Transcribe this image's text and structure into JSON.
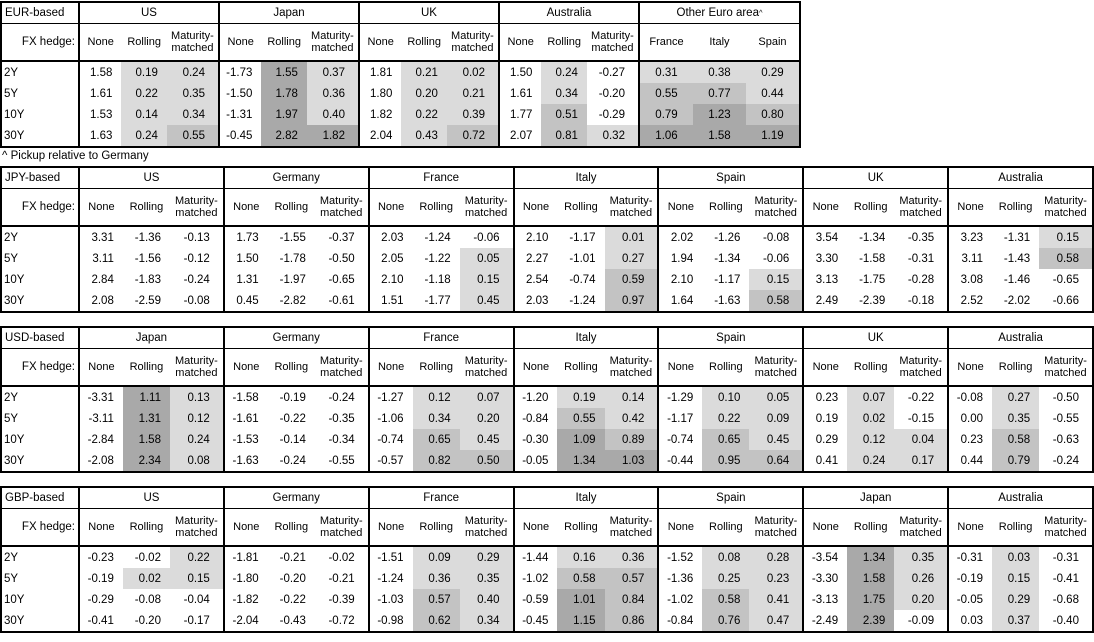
{
  "footnote": "^ Pickup relative to Germany",
  "hedge_row_label": "FX hedge:",
  "hedge_options": [
    "None",
    "Rolling",
    "Maturity-matched"
  ],
  "tenors": [
    "2Y",
    "5Y",
    "10Y",
    "30Y"
  ],
  "shading": {
    "negative": "#ffffff",
    "light": "#dbdbdb",
    "medium": "#c3c3c3",
    "dark": "#a9a9a9",
    "light_max": 0.5,
    "medium_max": 1.0,
    "rule": "applies to Rolling, Maturity-matched and pickup columns only"
  },
  "tables": [
    {
      "id": "eur-based",
      "title": "EUR-based",
      "footnote_after": true,
      "groups": [
        {
          "name": "US",
          "columns": [
            "None",
            "Rolling",
            "Maturity-matched"
          ],
          "values": [
            [
              "1.58",
              "0.19",
              "0.24"
            ],
            [
              "1.61",
              "0.22",
              "0.35"
            ],
            [
              "1.53",
              "0.14",
              "0.34"
            ],
            [
              "1.63",
              "0.24",
              "0.55"
            ]
          ]
        },
        {
          "name": "Japan",
          "columns": [
            "None",
            "Rolling",
            "Maturity-matched"
          ],
          "values": [
            [
              "-1.73",
              "1.55",
              "0.37"
            ],
            [
              "-1.50",
              "1.78",
              "0.36"
            ],
            [
              "-1.31",
              "1.97",
              "0.40"
            ],
            [
              "-0.45",
              "2.82",
              "1.82"
            ]
          ]
        },
        {
          "name": "UK",
          "columns": [
            "None",
            "Rolling",
            "Maturity-matched"
          ],
          "values": [
            [
              "1.81",
              "0.21",
              "0.02"
            ],
            [
              "1.80",
              "0.20",
              "0.21"
            ],
            [
              "1.82",
              "0.22",
              "0.39"
            ],
            [
              "2.04",
              "0.43",
              "0.72"
            ]
          ]
        },
        {
          "name": "Australia",
          "columns": [
            "None",
            "Rolling",
            "Maturity-matched"
          ],
          "values": [
            [
              "1.50",
              "0.24",
              "-0.27"
            ],
            [
              "1.61",
              "0.34",
              "-0.20"
            ],
            [
              "1.77",
              "0.51",
              "-0.29"
            ],
            [
              "2.07",
              "0.81",
              "0.32"
            ]
          ]
        },
        {
          "name": "Other Euro area",
          "superscript": "^",
          "pickup": true,
          "columns": [
            "France",
            "Italy",
            "Spain"
          ],
          "values": [
            [
              "0.31",
              "0.38",
              "0.29"
            ],
            [
              "0.55",
              "0.77",
              "0.44"
            ],
            [
              "0.79",
              "1.23",
              "0.80"
            ],
            [
              "1.06",
              "1.58",
              "1.19"
            ]
          ]
        }
      ]
    },
    {
      "id": "jpy-based",
      "title": "JPY-based",
      "groups": [
        {
          "name": "US",
          "columns": [
            "None",
            "Rolling",
            "Maturity-matched"
          ],
          "values": [
            [
              "3.31",
              "-1.36",
              "-0.13"
            ],
            [
              "3.11",
              "-1.56",
              "-0.12"
            ],
            [
              "2.84",
              "-1.83",
              "-0.24"
            ],
            [
              "2.08",
              "-2.59",
              "-0.08"
            ]
          ]
        },
        {
          "name": "Germany",
          "columns": [
            "None",
            "Rolling",
            "Maturity-matched"
          ],
          "values": [
            [
              "1.73",
              "-1.55",
              "-0.37"
            ],
            [
              "1.50",
              "-1.78",
              "-0.50"
            ],
            [
              "1.31",
              "-1.97",
              "-0.65"
            ],
            [
              "0.45",
              "-2.82",
              "-0.61"
            ]
          ]
        },
        {
          "name": "France",
          "columns": [
            "None",
            "Rolling",
            "Maturity-matched"
          ],
          "values": [
            [
              "2.03",
              "-1.24",
              "-0.06"
            ],
            [
              "2.05",
              "-1.22",
              "0.05"
            ],
            [
              "2.10",
              "-1.18",
              "0.15"
            ],
            [
              "1.51",
              "-1.77",
              "0.45"
            ]
          ]
        },
        {
          "name": "Italy",
          "columns": [
            "None",
            "Rolling",
            "Maturity-matched"
          ],
          "values": [
            [
              "2.10",
              "-1.17",
              "0.01"
            ],
            [
              "2.27",
              "-1.01",
              "0.27"
            ],
            [
              "2.54",
              "-0.74",
              "0.59"
            ],
            [
              "2.03",
              "-1.24",
              "0.97"
            ]
          ]
        },
        {
          "name": "Spain",
          "columns": [
            "None",
            "Rolling",
            "Maturity-matched"
          ],
          "values": [
            [
              "2.02",
              "-1.26",
              "-0.08"
            ],
            [
              "1.94",
              "-1.34",
              "-0.06"
            ],
            [
              "2.10",
              "-1.17",
              "0.15"
            ],
            [
              "1.64",
              "-1.63",
              "0.58"
            ]
          ]
        },
        {
          "name": "UK",
          "columns": [
            "None",
            "Rolling",
            "Maturity-matched"
          ],
          "values": [
            [
              "3.54",
              "-1.34",
              "-0.35"
            ],
            [
              "3.30",
              "-1.58",
              "-0.31"
            ],
            [
              "3.13",
              "-1.75",
              "-0.28"
            ],
            [
              "2.49",
              "-2.39",
              "-0.18"
            ]
          ]
        },
        {
          "name": "Australia",
          "columns": [
            "None",
            "Rolling",
            "Maturity-matched"
          ],
          "values": [
            [
              "3.23",
              "-1.31",
              "0.15"
            ],
            [
              "3.11",
              "-1.43",
              "0.58"
            ],
            [
              "3.08",
              "-1.46",
              "-0.65"
            ],
            [
              "2.52",
              "-2.02",
              "-0.66"
            ]
          ]
        }
      ]
    },
    {
      "id": "usd-based",
      "title": "USD-based",
      "groups": [
        {
          "name": "Japan",
          "columns": [
            "None",
            "Rolling",
            "Maturity-matched"
          ],
          "values": [
            [
              "-3.31",
              "1.11",
              "0.13"
            ],
            [
              "-3.11",
              "1.31",
              "0.12"
            ],
            [
              "-2.84",
              "1.58",
              "0.24"
            ],
            [
              "-2.08",
              "2.34",
              "0.08"
            ]
          ]
        },
        {
          "name": "Germany",
          "columns": [
            "None",
            "Rolling",
            "Maturity-matched"
          ],
          "values": [
            [
              "-1.58",
              "-0.19",
              "-0.24"
            ],
            [
              "-1.61",
              "-0.22",
              "-0.35"
            ],
            [
              "-1.53",
              "-0.14",
              "-0.34"
            ],
            [
              "-1.63",
              "-0.24",
              "-0.55"
            ]
          ]
        },
        {
          "name": "France",
          "columns": [
            "None",
            "Rolling",
            "Maturity-matched"
          ],
          "values": [
            [
              "-1.27",
              "0.12",
              "0.07"
            ],
            [
              "-1.06",
              "0.34",
              "0.20"
            ],
            [
              "-0.74",
              "0.65",
              "0.45"
            ],
            [
              "-0.57",
              "0.82",
              "0.50"
            ]
          ]
        },
        {
          "name": "Italy",
          "columns": [
            "None",
            "Rolling",
            "Maturity-matched"
          ],
          "values": [
            [
              "-1.20",
              "0.19",
              "0.14"
            ],
            [
              "-0.84",
              "0.55",
              "0.42"
            ],
            [
              "-0.30",
              "1.09",
              "0.89"
            ],
            [
              "-0.05",
              "1.34",
              "1.03"
            ]
          ]
        },
        {
          "name": "Spain",
          "columns": [
            "None",
            "Rolling",
            "Maturity-matched"
          ],
          "values": [
            [
              "-1.29",
              "0.10",
              "0.05"
            ],
            [
              "-1.17",
              "0.22",
              "0.09"
            ],
            [
              "-0.74",
              "0.65",
              "0.45"
            ],
            [
              "-0.44",
              "0.95",
              "0.64"
            ]
          ]
        },
        {
          "name": "UK",
          "columns": [
            "None",
            "Rolling",
            "Maturity-matched"
          ],
          "values": [
            [
              "0.23",
              "0.07",
              "-0.22"
            ],
            [
              "0.19",
              "0.02",
              "-0.15"
            ],
            [
              "0.29",
              "0.12",
              "0.04"
            ],
            [
              "0.41",
              "0.24",
              "0.17"
            ]
          ]
        },
        {
          "name": "Australia",
          "columns": [
            "None",
            "Rolling",
            "Maturity-matched"
          ],
          "values": [
            [
              "-0.08",
              "0.27",
              "-0.50"
            ],
            [
              "0.00",
              "0.35",
              "-0.55"
            ],
            [
              "0.23",
              "0.58",
              "-0.63"
            ],
            [
              "0.44",
              "0.79",
              "-0.24"
            ]
          ]
        }
      ]
    },
    {
      "id": "gbp-based",
      "title": "GBP-based",
      "groups": [
        {
          "name": "US",
          "columns": [
            "None",
            "Rolling",
            "Maturity-matched"
          ],
          "values": [
            [
              "-0.23",
              "-0.02",
              "0.22"
            ],
            [
              "-0.19",
              "0.02",
              "0.15"
            ],
            [
              "-0.29",
              "-0.08",
              "-0.04"
            ],
            [
              "-0.41",
              "-0.20",
              "-0.17"
            ]
          ]
        },
        {
          "name": "Germany",
          "columns": [
            "None",
            "Rolling",
            "Maturity-matched"
          ],
          "values": [
            [
              "-1.81",
              "-0.21",
              "-0.02"
            ],
            [
              "-1.80",
              "-0.20",
              "-0.21"
            ],
            [
              "-1.82",
              "-0.22",
              "-0.39"
            ],
            [
              "-2.04",
              "-0.43",
              "-0.72"
            ]
          ]
        },
        {
          "name": "France",
          "columns": [
            "None",
            "Rolling",
            "Maturity-matched"
          ],
          "values": [
            [
              "-1.51",
              "0.09",
              "0.29"
            ],
            [
              "-1.24",
              "0.36",
              "0.35"
            ],
            [
              "-1.03",
              "0.57",
              "0.40"
            ],
            [
              "-0.98",
              "0.62",
              "0.34"
            ]
          ]
        },
        {
          "name": "Italy",
          "columns": [
            "None",
            "Rolling",
            "Maturity-matched"
          ],
          "values": [
            [
              "-1.44",
              "0.16",
              "0.36"
            ],
            [
              "-1.02",
              "0.58",
              "0.57"
            ],
            [
              "-0.59",
              "1.01",
              "0.84"
            ],
            [
              "-0.45",
              "1.15",
              "0.86"
            ]
          ]
        },
        {
          "name": "Spain",
          "columns": [
            "None",
            "Rolling",
            "Maturity-matched"
          ],
          "values": [
            [
              "-1.52",
              "0.08",
              "0.28"
            ],
            [
              "-1.36",
              "0.25",
              "0.23"
            ],
            [
              "-1.02",
              "0.58",
              "0.41"
            ],
            [
              "-0.84",
              "0.76",
              "0.47"
            ]
          ]
        },
        {
          "name": "Japan",
          "columns": [
            "None",
            "Rolling",
            "Maturity-matched"
          ],
          "values": [
            [
              "-3.54",
              "1.34",
              "0.35"
            ],
            [
              "-3.30",
              "1.58",
              "0.26"
            ],
            [
              "-3.13",
              "1.75",
              "0.20"
            ],
            [
              "-2.49",
              "2.39",
              "-0.09"
            ]
          ]
        },
        {
          "name": "Australia",
          "columns": [
            "None",
            "Rolling",
            "Maturity-matched"
          ],
          "values": [
            [
              "-0.31",
              "0.03",
              "-0.31"
            ],
            [
              "-0.19",
              "0.15",
              "-0.41"
            ],
            [
              "-0.05",
              "0.29",
              "-0.68"
            ],
            [
              "0.03",
              "0.37",
              "-0.40"
            ]
          ]
        }
      ]
    }
  ]
}
